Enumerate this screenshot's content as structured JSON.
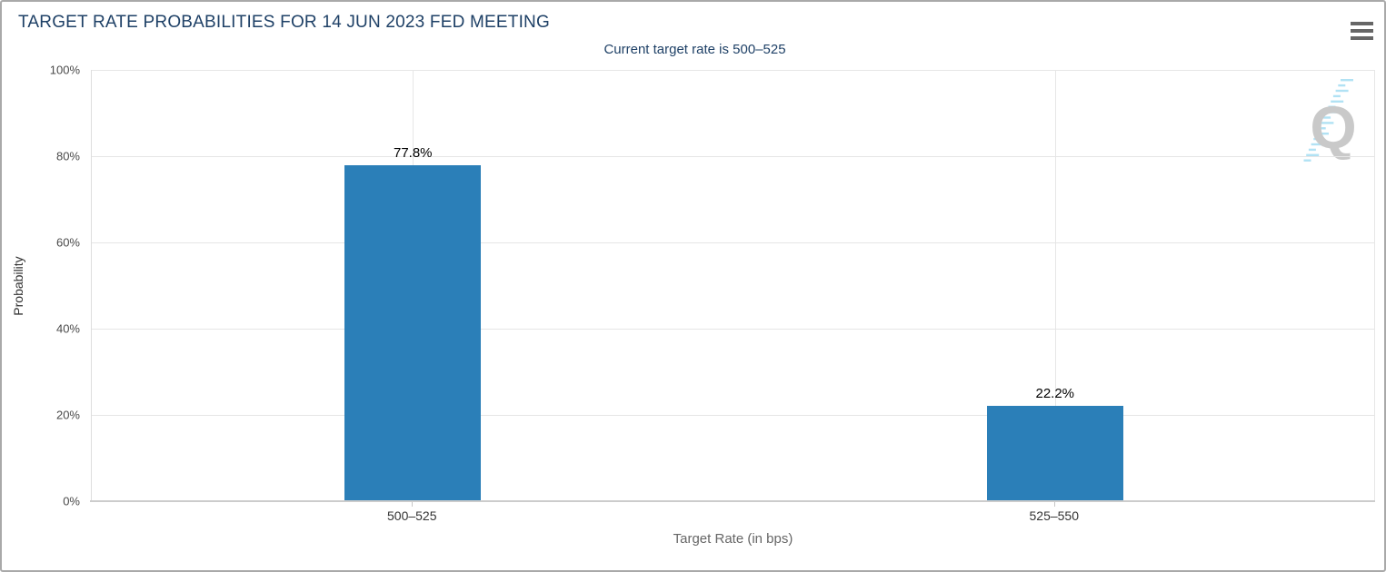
{
  "header": {
    "title": "TARGET RATE PROBABILITIES FOR 14 JUN 2023 FED MEETING",
    "subtitle": "Current target rate is 500–525",
    "menu_icon": "hamburger-icon"
  },
  "chart_data": {
    "type": "bar",
    "title": "TARGET RATE PROBABILITIES FOR 14 JUN 2023 FED MEETING",
    "subtitle": "Current target rate is 500–525",
    "categories": [
      "500–525",
      "525–550"
    ],
    "values": [
      77.8,
      22.2
    ],
    "value_labels": [
      "77.8%",
      "22.2%"
    ],
    "xlabel": "Target Rate (in bps)",
    "ylabel": "Probability",
    "ylim": [
      0,
      100
    ],
    "ytick_values": [
      0,
      20,
      40,
      60,
      80,
      100
    ],
    "ytick_labels": [
      "0%",
      "20%",
      "40%",
      "60%",
      "80%",
      "100%"
    ],
    "grid": true,
    "legend": "none",
    "bar_color": "#2b7fb8"
  },
  "colors": {
    "title_navy": "#1e4066",
    "bar_blue": "#2b7fb8",
    "gridline": "#e6e6e6",
    "axis_line": "#cccccc",
    "tick_text": "#333333",
    "axis_title_gray": "#666666",
    "watermark_gray": "#c9c9c9",
    "watermark_blue": "#a8dff3"
  },
  "watermark": {
    "letter": "Q"
  }
}
